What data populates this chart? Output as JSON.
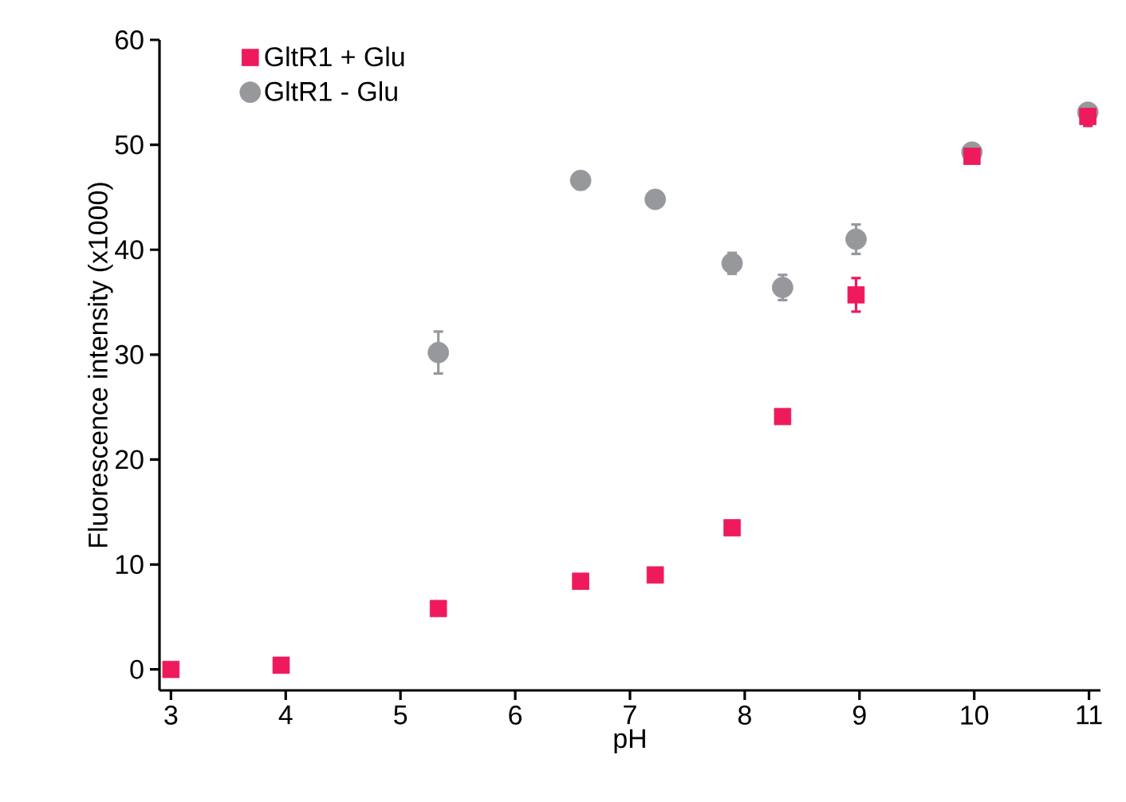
{
  "chart_data": {
    "type": "scatter",
    "xlabel": "pH",
    "ylabel": "Fluorescence intensity (x1000)",
    "xlim": [
      2.9,
      11.1
    ],
    "ylim": [
      -2,
      60
    ],
    "xticks": [
      3,
      4,
      5,
      6,
      7,
      8,
      9,
      10,
      11
    ],
    "yticks": [
      0,
      10,
      20,
      30,
      40,
      50,
      60
    ],
    "legend": "top left",
    "grid": false,
    "series": [
      {
        "name": "GltR1 + Glu",
        "color": "#ee1a5c",
        "marker": "square",
        "x": [
          3,
          3.96,
          5.33,
          6.57,
          7.22,
          7.89,
          8.33,
          8.97,
          9.98,
          10.99
        ],
        "values": [
          0,
          0.4,
          5.8,
          8.4,
          9.0,
          13.5,
          24.1,
          35.7,
          48.9,
          52.7
        ],
        "errors": [
          null,
          null,
          null,
          null,
          null,
          null,
          null,
          1.6,
          null,
          0.9
        ]
      },
      {
        "name": "GltR1 - Glu",
        "color": "#97989c",
        "marker": "circle",
        "x": [
          5.33,
          6.57,
          7.22,
          7.89,
          8.33,
          8.97,
          9.98,
          10.99
        ],
        "values": [
          30.2,
          46.6,
          44.8,
          38.7,
          36.4,
          41.0,
          49.3,
          53.1
        ],
        "errors": [
          2.0,
          0.8,
          null,
          1.0,
          1.2,
          1.4,
          null,
          null
        ]
      }
    ]
  }
}
